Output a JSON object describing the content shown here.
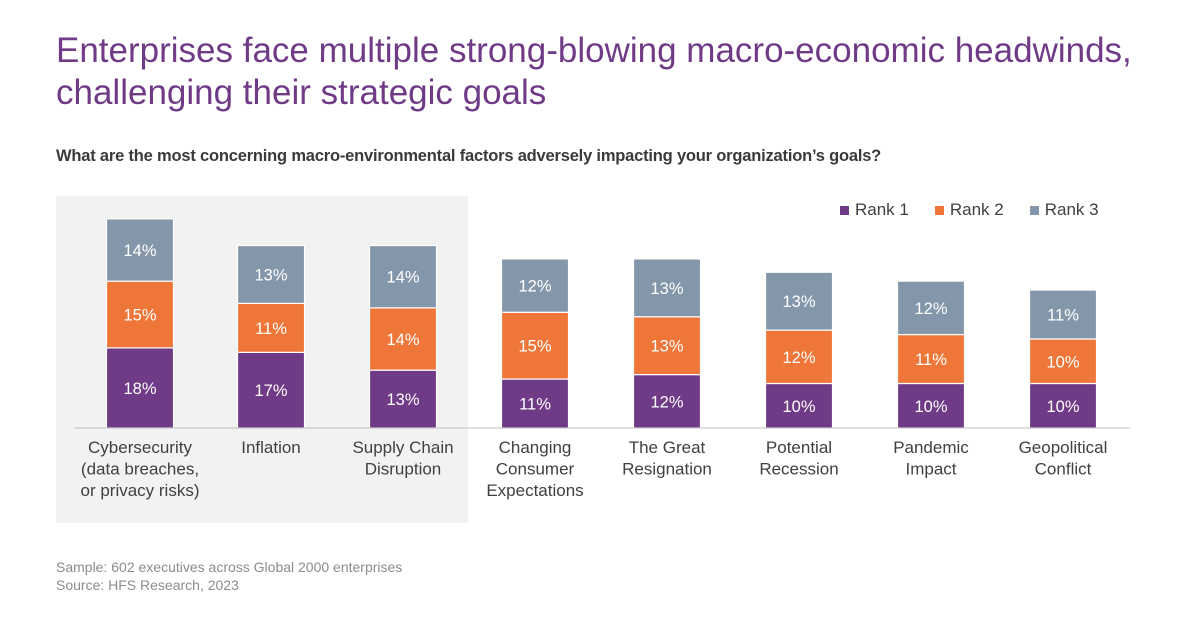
{
  "title": "Enterprises face multiple strong-blowing macro-economic headwinds, challenging their strategic goals",
  "subtitle": "What are the most concerning macro-environmental factors adversely impacting your organization’s goals?",
  "legend": [
    {
      "label": "Rank 1",
      "color": "#6f3a86"
    },
    {
      "label": "Rank 2",
      "color": "#ee7639"
    },
    {
      "label": "Rank 3",
      "color": "#8497aa"
    }
  ],
  "footnotes": {
    "sample": "Sample: 602 executives across Global 2000 enterprises",
    "source": "Source: HFS Research, 2023"
  },
  "chart_data": {
    "type": "bar",
    "stacked": true,
    "categories": [
      [
        "Cybersecurity",
        "(data breaches,",
        "or privacy risks)"
      ],
      [
        "Inflation"
      ],
      [
        "Supply Chain",
        "Disruption"
      ],
      [
        "Changing",
        "Consumer",
        "Expectations"
      ],
      [
        "The Great",
        "Resignation"
      ],
      [
        "Potential",
        "Recession"
      ],
      [
        "Pandemic",
        "Impact"
      ],
      [
        "Geopolitical",
        "Conflict"
      ]
    ],
    "series": [
      {
        "name": "Rank 1",
        "color": "#6f3a86",
        "values": [
          18,
          17,
          13,
          11,
          12,
          10,
          10,
          10
        ],
        "labels": [
          "18%",
          "17%",
          "13%",
          "11%",
          "12%",
          "10%",
          "10%",
          "10%"
        ]
      },
      {
        "name": "Rank 2",
        "color": "#ee7639",
        "values": [
          15,
          11,
          14,
          15,
          13,
          12,
          11,
          10
        ],
        "labels": [
          "15%",
          "11%",
          "14%",
          "15%",
          "13%",
          "12%",
          "11%",
          "10%"
        ]
      },
      {
        "name": "Rank 3",
        "color": "#8497aa",
        "values": [
          14,
          13,
          14,
          12,
          13,
          13,
          12,
          11
        ],
        "labels": [
          "14%",
          "13%",
          "14%",
          "12%",
          "13%",
          "13%",
          "12%",
          "11%"
        ]
      }
    ],
    "highlighted_categories": 3,
    "legend_position": "top-right",
    "grid": false
  }
}
